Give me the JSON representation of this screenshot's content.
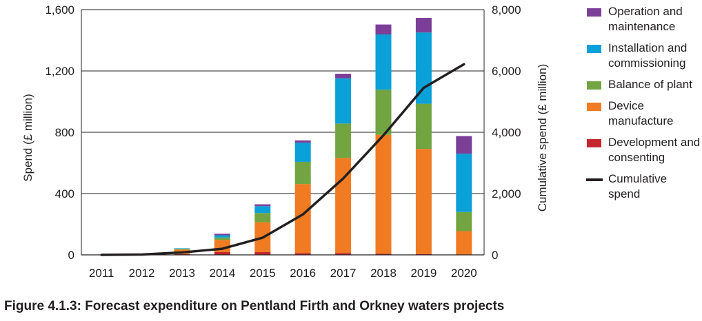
{
  "chart_data": {
    "type": "bar",
    "stacked": true,
    "categories": [
      "2011",
      "2012",
      "2013",
      "2014",
      "2015",
      "2016",
      "2017",
      "2018",
      "2019",
      "2020"
    ],
    "series": [
      {
        "name": "Development and consenting",
        "color": "#c4262e",
        "values": [
          0,
          2,
          5,
          18,
          18,
          12,
          12,
          8,
          6,
          0
        ]
      },
      {
        "name": "Device manufacture",
        "color": "#f07b23",
        "values": [
          2,
          3,
          30,
          80,
          195,
          450,
          620,
          775,
          685,
          155
        ]
      },
      {
        "name": "Balance of plant",
        "color": "#72a541",
        "values": [
          0,
          2,
          5,
          15,
          60,
          145,
          225,
          295,
          295,
          125
        ]
      },
      {
        "name": "Installation and commissioning",
        "color": "#0aa0d8",
        "values": [
          0,
          1,
          3,
          15,
          45,
          125,
          295,
          360,
          465,
          380
        ]
      },
      {
        "name": "Operation and maintenance",
        "color": "#7b3f98",
        "values": [
          0,
          0,
          0,
          10,
          12,
          15,
          30,
          65,
          95,
          115
        ]
      }
    ],
    "line_series": {
      "name": "Cumulative spend",
      "color": "#231f20",
      "axis": "right",
      "values": [
        0,
        10,
        80,
        200,
        560,
        1320,
        2490,
        3900,
        5450,
        6220
      ]
    },
    "y_left": {
      "label": "Spend (£ million)",
      "range": [
        0,
        1600
      ],
      "ticks": [
        "0",
        "400",
        "800",
        "1,200",
        "1,600"
      ]
    },
    "y_right": {
      "label": "Cumulative spend (£ million)",
      "range": [
        0,
        8000
      ],
      "ticks": [
        "0",
        "2,000",
        "4,000",
        "6,000",
        "8,000"
      ]
    },
    "grid": "horizontal",
    "legend_position": "right",
    "caption": "Figure 4.1.3: Forecast expenditure on Pentland Firth and Orkney waters projects"
  }
}
